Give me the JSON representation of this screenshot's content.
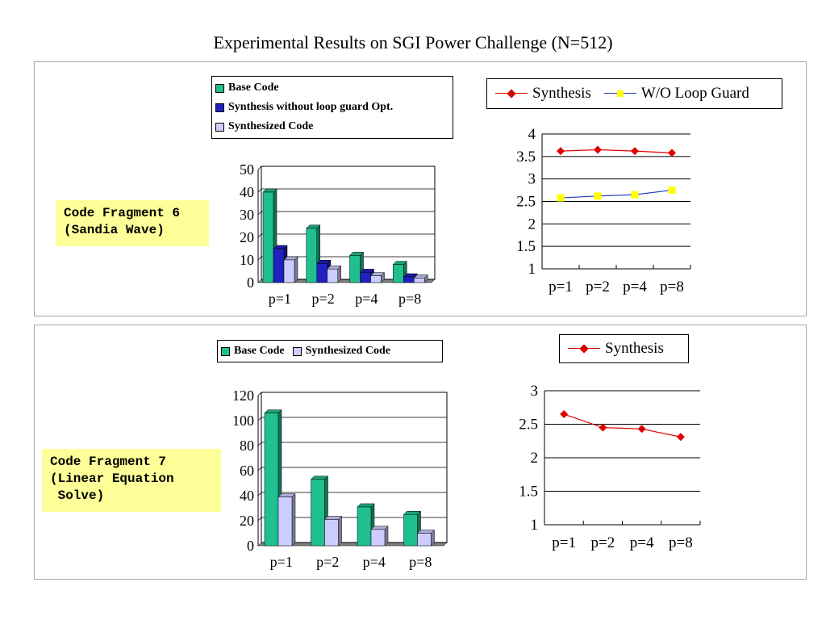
{
  "slide": {
    "title": "Experimental Results on SGI Power Challenge (N=512)"
  },
  "fragments": [
    {
      "label": "Code Fragment 6\n(Sandia Wave)"
    },
    {
      "label": "Code Fragment 7\n(Linear Equation\n Solve)"
    }
  ],
  "colors": {
    "base": "#1fbf8f",
    "synth_no_guard": "#2020c0",
    "synthesized": "#ccccff",
    "synthesis_line": "#e00000",
    "wo_guard_line": "#2040c0",
    "wo_guard_marker": "#ffff00",
    "label_bg": "#ffff99"
  },
  "legends": {
    "bar1": [
      "Base Code",
      "Synthesis without loop guard Opt.",
      "Synthesized Code"
    ],
    "line1": [
      "Synthesis",
      "W/O Loop Guard"
    ],
    "bar2": [
      "Base Code",
      "Synthesized Code"
    ],
    "line2": [
      "Synthesis"
    ]
  },
  "chart_data": [
    {
      "type": "bar",
      "categories": [
        "p=1",
        "p=2",
        "p=4",
        "p=8"
      ],
      "series": [
        {
          "name": "Base Code",
          "values": [
            40,
            24,
            12,
            8
          ]
        },
        {
          "name": "Synthesis without loop guard Opt.",
          "values": [
            15,
            8.5,
            4.5,
            2.5
          ]
        },
        {
          "name": "Synthesized Code",
          "values": [
            10,
            6,
            3,
            2
          ]
        }
      ],
      "ylim": [
        0,
        50
      ],
      "yticks": [
        "0",
        "10",
        "20",
        "30",
        "40",
        "50"
      ]
    },
    {
      "type": "line",
      "categories": [
        "p=1",
        "p=2",
        "p=4",
        "p=8"
      ],
      "series": [
        {
          "name": "Synthesis",
          "values": [
            3.62,
            3.65,
            3.62,
            3.58
          ]
        },
        {
          "name": "W/O Loop Guard",
          "values": [
            2.58,
            2.62,
            2.65,
            2.75
          ]
        }
      ],
      "ylim": [
        1,
        4
      ],
      "yticks": [
        "1",
        "1.5",
        "2",
        "2.5",
        "3",
        "3.5",
        "4"
      ]
    },
    {
      "type": "bar",
      "categories": [
        "p=1",
        "p=2",
        "p=4",
        "p=8"
      ],
      "series": [
        {
          "name": "Base Code",
          "values": [
            106,
            53,
            31,
            25
          ]
        },
        {
          "name": "Synthesized Code",
          "values": [
            39,
            21,
            13,
            10
          ]
        }
      ],
      "ylim": [
        0,
        120
      ],
      "yticks": [
        "0",
        "20",
        "40",
        "60",
        "80",
        "100",
        "120"
      ]
    },
    {
      "type": "line",
      "categories": [
        "p=1",
        "p=2",
        "p=4",
        "p=8"
      ],
      "series": [
        {
          "name": "Synthesis",
          "values": [
            2.65,
            2.45,
            2.43,
            2.31
          ]
        }
      ],
      "ylim": [
        1,
        3
      ],
      "yticks": [
        "1",
        "1.5",
        "2",
        "2.5",
        "3"
      ]
    }
  ]
}
